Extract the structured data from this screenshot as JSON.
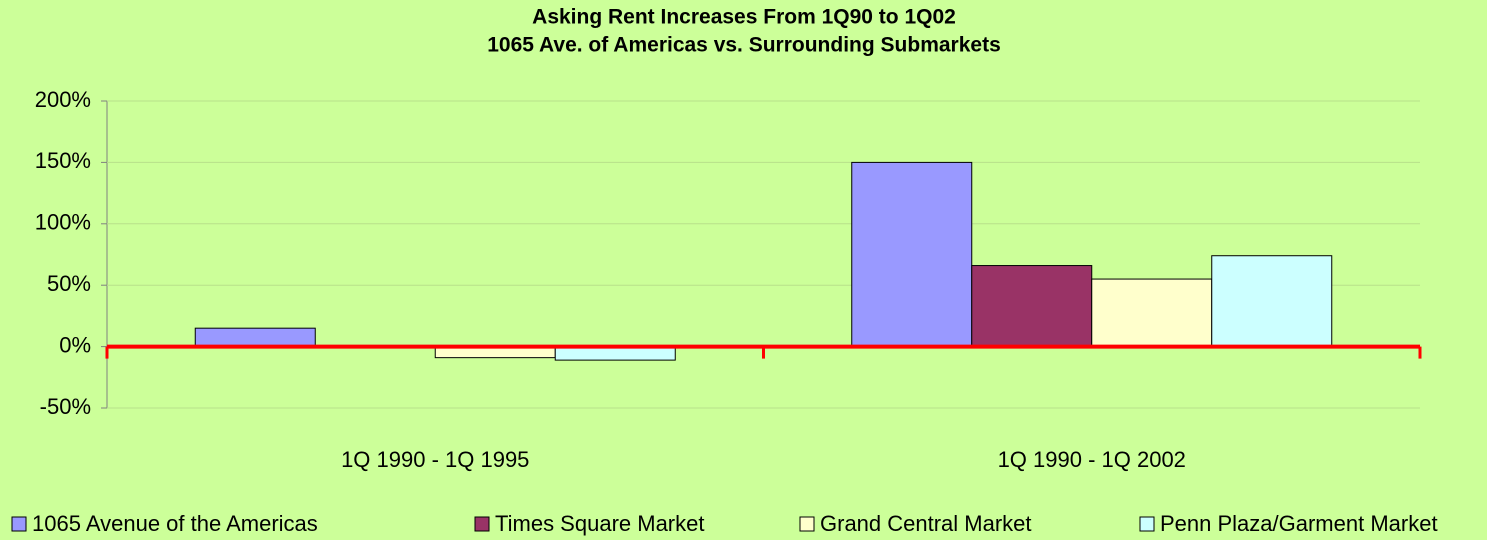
{
  "chart_data": {
    "type": "bar",
    "title": "Asking Rent Increases From 1Q90 to 1Q02",
    "subtitle": "1065 Ave. of Americas vs. Surrounding Submarkets",
    "categories": [
      "1Q 1990 - 1Q 1995",
      "1Q 1990 - 1Q 2002"
    ],
    "series": [
      {
        "name": "1065 Avenue of the Americas",
        "color": "#9999ff",
        "values": [
          15,
          150
        ]
      },
      {
        "name": "Times Square Market",
        "color": "#993366",
        "values": [
          0,
          66
        ]
      },
      {
        "name": "Grand Central Market",
        "color": "#ffffcc",
        "values": [
          -9,
          55
        ]
      },
      {
        "name": "Penn Plaza/Garment Market",
        "color": "#ccffff",
        "values": [
          -11,
          74
        ]
      }
    ],
    "ylim": [
      -50,
      200
    ],
    "yticks": [
      {
        "value": -50,
        "label": "-50%"
      },
      {
        "value": 0,
        "label": "0%"
      },
      {
        "value": 50,
        "label": "50%"
      },
      {
        "value": 100,
        "label": "100%"
      },
      {
        "value": 150,
        "label": "150%"
      },
      {
        "value": 200,
        "label": "200%"
      }
    ],
    "grid": true,
    "zero_line_color": "#ff0000",
    "background": "#ccff99",
    "legend": "bottom"
  }
}
